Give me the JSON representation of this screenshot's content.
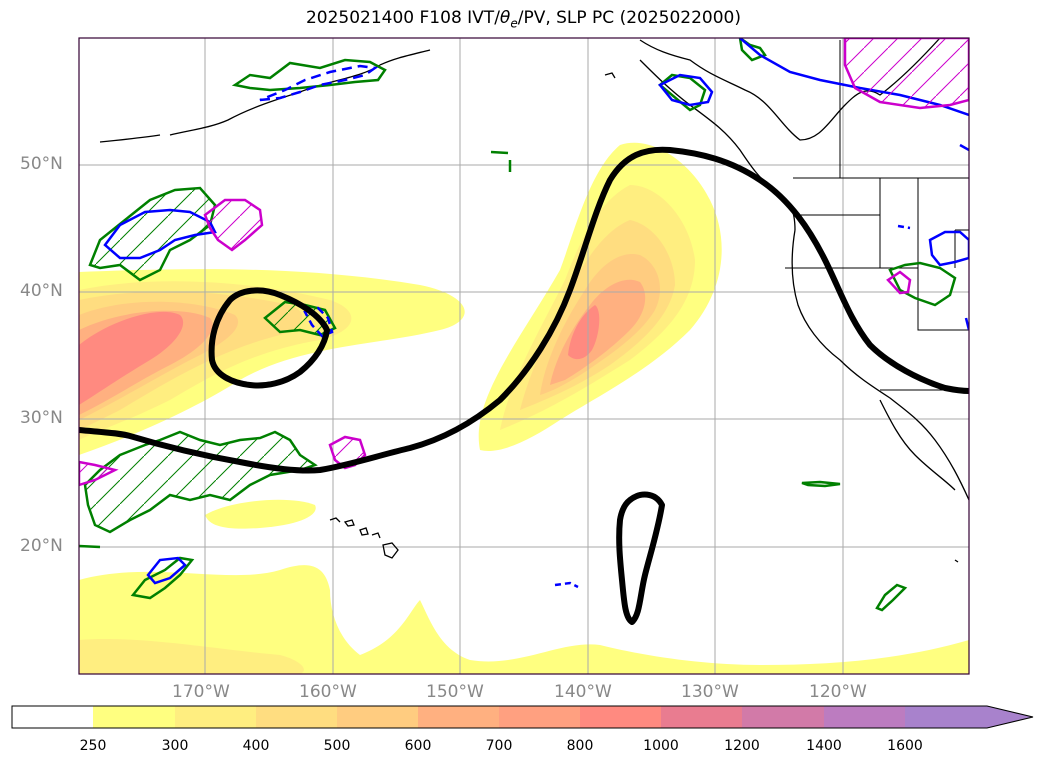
{
  "title": {
    "prefix": "2025021400 F108 IVT/",
    "theta": "θ",
    "sub": "e",
    "suffix": "/PV, SLP PC (2025022000)"
  },
  "axes": {
    "lat_labels": [
      "50°N",
      "40°N",
      "30°N",
      "20°N"
    ],
    "lon_labels": [
      "170°W",
      "160°W",
      "150°W",
      "140°W",
      "130°W",
      "120°W"
    ]
  },
  "colorbar": {
    "ticks": [
      "250",
      "300",
      "400",
      "500",
      "600",
      "700",
      "800",
      "1000",
      "1200",
      "1400",
      "1600"
    ],
    "colors": [
      "#ffffff",
      "#ffff80",
      "#ffee80",
      "#ffdd80",
      "#ffcc80",
      "#ffb080",
      "#ffa080",
      "#ff8a80",
      "#e97c90",
      "#d27aa8",
      "#bc7cc0",
      "#a882cc"
    ]
  },
  "colors": {
    "slp_contour": "#000000",
    "theta_contour": "#008000",
    "pv_contour": "#0000ff",
    "pv_hatch": "#cc00cc",
    "grid": "#aaaaaa",
    "frame": "#330033"
  }
}
